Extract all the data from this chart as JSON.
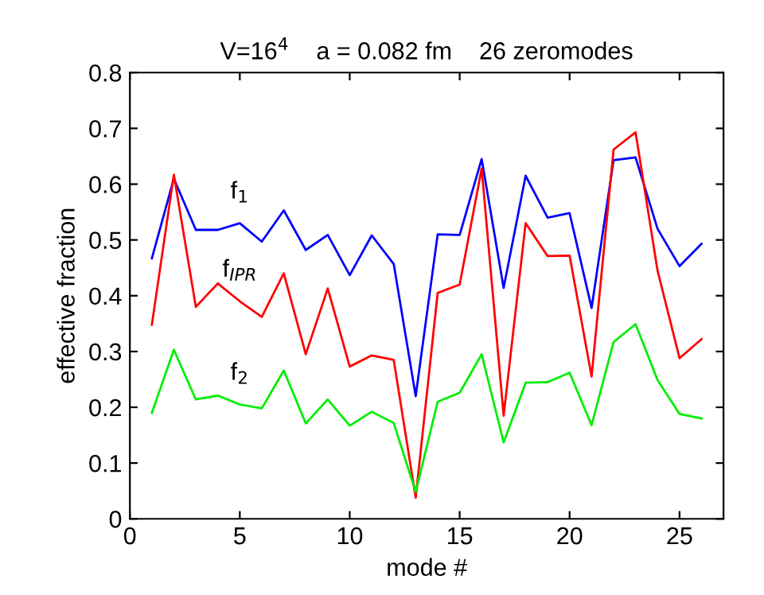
{
  "chart_data": {
    "type": "line",
    "title": "V=16$^{4}$    a = 0.082 fm    26 zeromodes",
    "xlabel": "mode #",
    "ylabel": "effective fraction",
    "x": [
      1,
      2,
      3,
      4,
      5,
      6,
      7,
      8,
      9,
      10,
      11,
      12,
      13,
      14,
      15,
      16,
      17,
      18,
      19,
      20,
      21,
      22,
      23,
      24,
      25,
      26
    ],
    "series": [
      {
        "name": "f$_{1}$",
        "color": "#0000ff",
        "values": [
          0.467,
          0.61,
          0.518,
          0.518,
          0.53,
          0.497,
          0.553,
          0.482,
          0.509,
          0.437,
          0.508,
          0.457,
          0.22,
          0.51,
          0.509,
          0.645,
          0.414,
          0.615,
          0.54,
          0.548,
          0.378,
          0.643,
          0.648,
          0.52,
          0.453,
          0.493
        ]
      },
      {
        "name": "f$_{IPR}$",
        "color": "#ff0000",
        "values": [
          0.348,
          0.617,
          0.38,
          0.422,
          0.39,
          0.362,
          0.44,
          0.295,
          0.413,
          0.273,
          0.293,
          0.285,
          0.038,
          0.405,
          0.42,
          0.628,
          0.185,
          0.53,
          0.471,
          0.472,
          0.255,
          0.662,
          0.693,
          0.445,
          0.288,
          0.322
        ]
      },
      {
        "name": "f$_{2}$",
        "color": "#00ee00",
        "values": [
          0.19,
          0.303,
          0.214,
          0.221,
          0.205,
          0.198,
          0.266,
          0.171,
          0.214,
          0.167,
          0.192,
          0.172,
          0.048,
          0.21,
          0.226,
          0.295,
          0.137,
          0.244,
          0.245,
          0.262,
          0.168,
          0.317,
          0.349,
          0.249,
          0.188,
          0.18
        ]
      }
    ],
    "xlim": [
      0,
      27
    ],
    "ylim": [
      0,
      0.8
    ],
    "xticks": [
      0,
      5,
      10,
      15,
      20,
      25
    ],
    "yticks": [
      0,
      0.1,
      0.2,
      0.3,
      0.4,
      0.5,
      0.6,
      0.7,
      0.8
    ],
    "grid": false,
    "legend": false,
    "marker": "none",
    "line_style": "solid"
  }
}
